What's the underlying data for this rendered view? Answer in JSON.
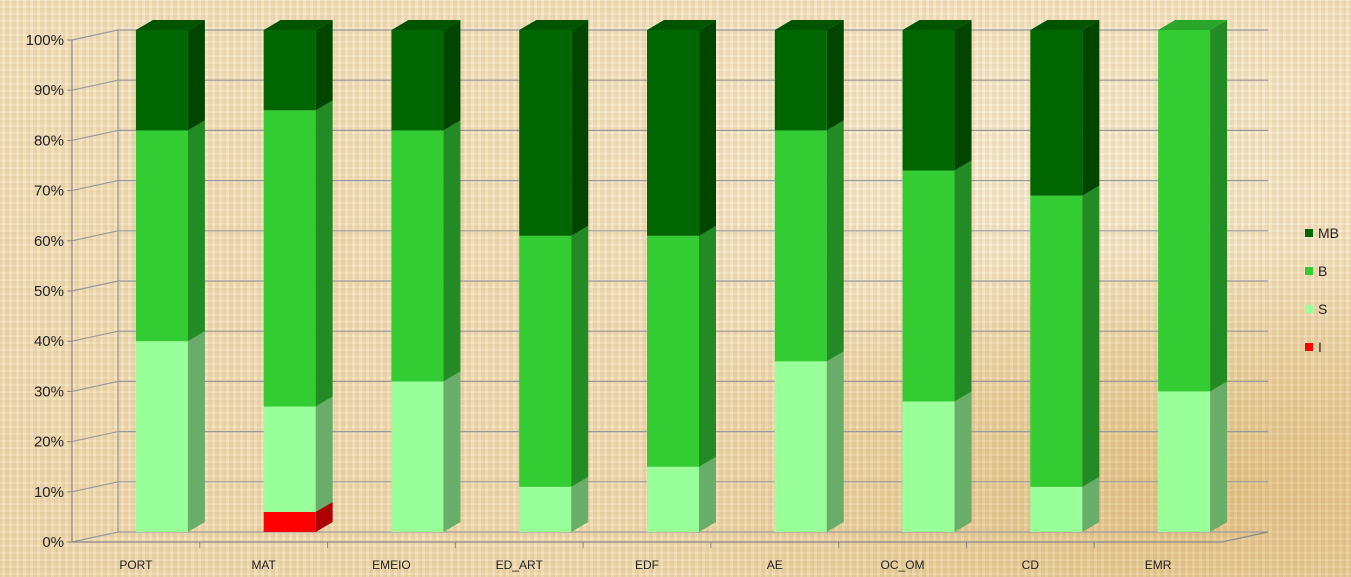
{
  "chart_data": {
    "type": "bar",
    "stacked": true,
    "percent": true,
    "three_d": true,
    "categories": [
      "PORT",
      "MAT",
      "EMEIO",
      "ED_ART",
      "EDF",
      "AE",
      "OC_OM",
      "CD",
      "EMR"
    ],
    "series": [
      {
        "name": "I",
        "color": "#ff0000",
        "values": [
          0,
          4,
          0,
          0,
          0,
          0,
          0,
          0,
          0
        ]
      },
      {
        "name": "S",
        "color": "#99ff99",
        "values": [
          38,
          21,
          30,
          9,
          13,
          34,
          26,
          9,
          28
        ]
      },
      {
        "name": "B",
        "color": "#33cc33",
        "values": [
          42,
          59,
          50,
          50,
          46,
          46,
          46,
          58,
          72
        ]
      },
      {
        "name": "MB",
        "color": "#006600",
        "values": [
          20,
          16,
          20,
          41,
          41,
          20,
          28,
          33,
          0
        ]
      }
    ],
    "y_ticks": [
      "0%",
      "10%",
      "20%",
      "30%",
      "40%",
      "50%",
      "60%",
      "70%",
      "80%",
      "90%",
      "100%"
    ],
    "ylim": [
      0,
      100
    ],
    "grid": true,
    "legend": {
      "position": "right",
      "order": [
        "MB",
        "B",
        "S",
        "I"
      ]
    }
  }
}
